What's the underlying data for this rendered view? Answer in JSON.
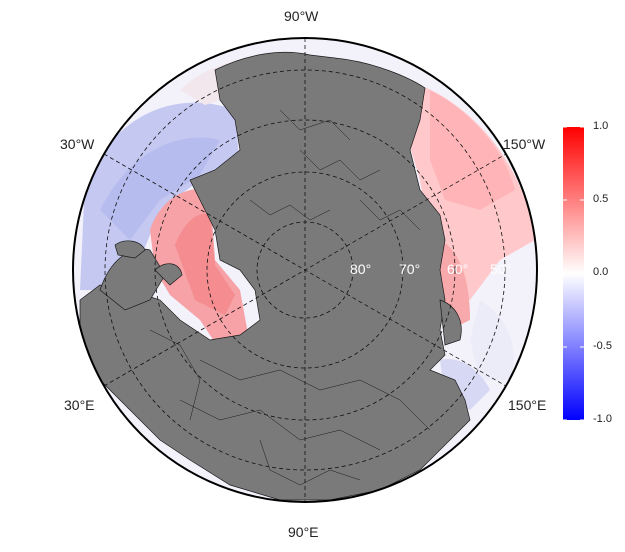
{
  "map": {
    "longitude_labels": [
      {
        "id": "lon-90w",
        "text": "90°W"
      },
      {
        "id": "lon-30w",
        "text": "30°W"
      },
      {
        "id": "lon-150w",
        "text": "150°W"
      },
      {
        "id": "lon-30e",
        "text": "30°E"
      },
      {
        "id": "lon-150e",
        "text": "150°E"
      },
      {
        "id": "lon-90e",
        "text": "90°E"
      }
    ],
    "latitude_labels": [
      "80°",
      "70°",
      "60°",
      "50°"
    ],
    "projection": "north-polar-stereographic",
    "land_color": "#7a7a7a",
    "ocean_colormap": [
      "#0000ff",
      "#ffffff",
      "#ff0000"
    ]
  },
  "colorbar": {
    "min": -1.0,
    "max": 1.0,
    "ticks": [
      "1.0",
      "0.5",
      "0.0",
      "-0.5",
      "-1.0"
    ],
    "colors": {
      "high": "#ff0000",
      "mid": "#ffffff",
      "low": "#0000ff"
    }
  }
}
